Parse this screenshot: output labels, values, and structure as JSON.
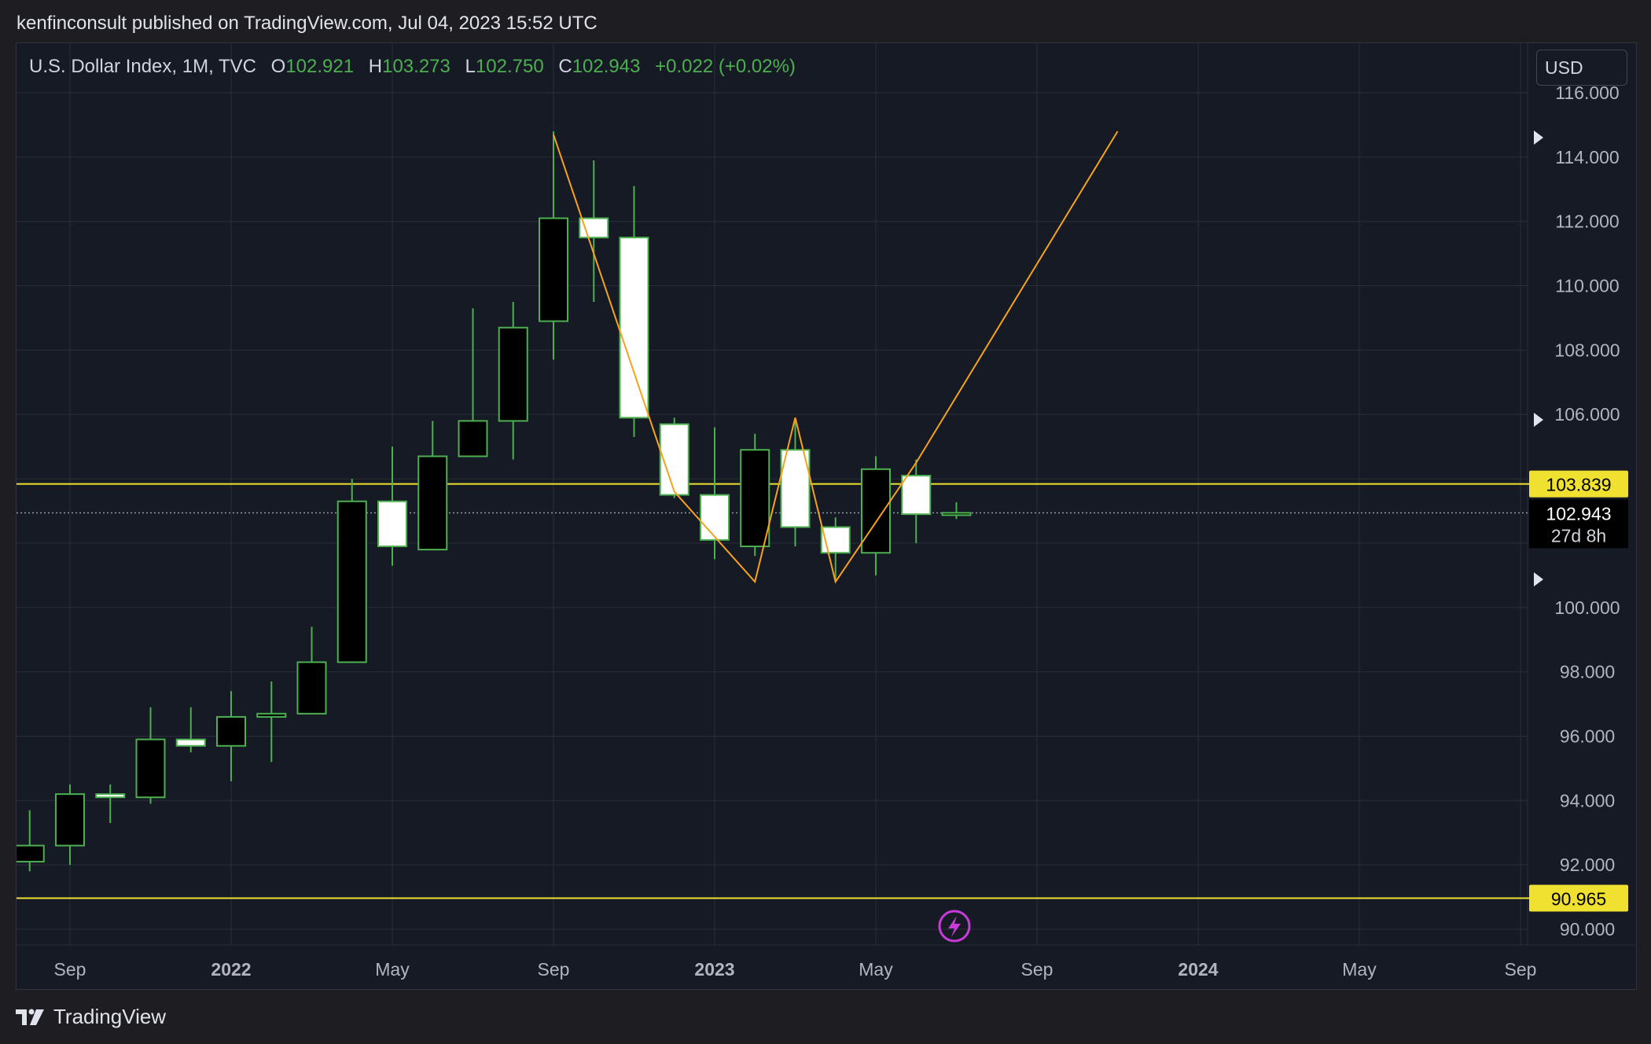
{
  "header": {
    "publisher_line": "kenfinconsult published on TradingView.com, Jul 04, 2023 15:52 UTC"
  },
  "legend": {
    "symbol": "U.S. Dollar Index, 1M, TVC",
    "o_label": "O",
    "o_value": "102.921",
    "h_label": "H",
    "h_value": "103.273",
    "l_label": "L",
    "l_value": "102.750",
    "c_label": "C",
    "c_value": "102.943",
    "change": "+0.022 (+0.02%)"
  },
  "currency_button": "USD",
  "footer": {
    "brand": "TradingView"
  },
  "colors": {
    "background": "#161a25",
    "candle_border": "#4caf50",
    "yellow_line": "#f0e130",
    "trend_line": "#f7a21b",
    "grid": "#2a2e39"
  },
  "chart_data": {
    "type": "candlestick",
    "interval": "1M",
    "y_axis": {
      "range": [
        89.5,
        117
      ],
      "ticks": [
        "116.000",
        "114.000",
        "112.000",
        "110.000",
        "108.000",
        "106.000",
        "100.000",
        "98.000",
        "96.000",
        "94.000",
        "92.000",
        "90.000"
      ],
      "side": "right"
    },
    "x_axis": {
      "labels": [
        {
          "text": "Sep",
          "month": "2021-09",
          "bold": false
        },
        {
          "text": "2022",
          "month": "2022-01",
          "bold": true
        },
        {
          "text": "May",
          "month": "2022-05",
          "bold": false
        },
        {
          "text": "Sep",
          "month": "2022-09",
          "bold": false
        },
        {
          "text": "2023",
          "month": "2023-01",
          "bold": true
        },
        {
          "text": "May",
          "month": "2023-05",
          "bold": false
        },
        {
          "text": "Sep",
          "month": "2023-09",
          "bold": false
        },
        {
          "text": "2024",
          "month": "2024-01",
          "bold": true
        },
        {
          "text": "May",
          "month": "2024-05",
          "bold": false
        },
        {
          "text": "Sep",
          "month": "2024-09",
          "bold": false
        }
      ]
    },
    "candles": [
      {
        "month": "2021-08",
        "o": 92.1,
        "h": 93.7,
        "l": 91.8,
        "c": 92.6
      },
      {
        "month": "2021-09",
        "o": 92.6,
        "h": 94.5,
        "l": 92.0,
        "c": 94.2
      },
      {
        "month": "2021-10",
        "o": 94.2,
        "h": 94.5,
        "l": 93.3,
        "c": 94.1
      },
      {
        "month": "2021-11",
        "o": 94.1,
        "h": 96.9,
        "l": 93.9,
        "c": 95.9
      },
      {
        "month": "2021-12",
        "o": 95.9,
        "h": 96.9,
        "l": 95.5,
        "c": 95.7
      },
      {
        "month": "2022-01",
        "o": 95.7,
        "h": 97.4,
        "l": 94.6,
        "c": 96.6
      },
      {
        "month": "2022-02",
        "o": 96.6,
        "h": 97.7,
        "l": 95.2,
        "c": 96.7
      },
      {
        "month": "2022-03",
        "o": 96.7,
        "h": 99.4,
        "l": 96.7,
        "c": 98.3
      },
      {
        "month": "2022-04",
        "o": 98.3,
        "h": 104.0,
        "l": 98.3,
        "c": 103.3
      },
      {
        "month": "2022-05",
        "o": 103.3,
        "h": 105.0,
        "l": 101.3,
        "c": 101.9
      },
      {
        "month": "2022-06",
        "o": 101.8,
        "h": 105.8,
        "l": 101.8,
        "c": 104.7
      },
      {
        "month": "2022-07",
        "o": 104.7,
        "h": 109.3,
        "l": 104.7,
        "c": 105.8
      },
      {
        "month": "2022-08",
        "o": 105.8,
        "h": 109.5,
        "l": 104.6,
        "c": 108.7
      },
      {
        "month": "2022-09",
        "o": 108.9,
        "h": 114.8,
        "l": 107.7,
        "c": 112.1
      },
      {
        "month": "2022-10",
        "o": 112.1,
        "h": 113.9,
        "l": 109.5,
        "c": 111.5
      },
      {
        "month": "2022-11",
        "o": 111.5,
        "h": 113.1,
        "l": 105.3,
        "c": 105.9
      },
      {
        "month": "2022-12",
        "o": 105.7,
        "h": 105.9,
        "l": 103.4,
        "c": 103.5
      },
      {
        "month": "2023-01",
        "o": 103.5,
        "h": 105.6,
        "l": 101.5,
        "c": 102.1
      },
      {
        "month": "2023-02",
        "o": 101.9,
        "h": 105.4,
        "l": 101.6,
        "c": 104.9
      },
      {
        "month": "2023-03",
        "o": 104.9,
        "h": 105.9,
        "l": 101.9,
        "c": 102.5
      },
      {
        "month": "2023-04",
        "o": 102.5,
        "h": 102.8,
        "l": 100.8,
        "c": 101.7
      },
      {
        "month": "2023-05",
        "o": 101.7,
        "h": 104.7,
        "l": 101.0,
        "c": 104.3
      },
      {
        "month": "2023-06",
        "o": 104.1,
        "h": 104.6,
        "l": 102.0,
        "c": 102.9
      },
      {
        "month": "2023-07",
        "o": 102.921,
        "h": 103.273,
        "l": 102.75,
        "c": 102.943
      }
    ],
    "horizontal_lines": [
      {
        "value": 103.839,
        "label": "103.839"
      },
      {
        "value": 90.965,
        "label": "90.965"
      }
    ],
    "trend_line": [
      {
        "month": "2022-09",
        "y": 114.7
      },
      {
        "month": "2022-12",
        "y": 103.6
      },
      {
        "month": "2023-02",
        "y": 100.8
      },
      {
        "month": "2023-03",
        "y": 105.9
      },
      {
        "month": "2023-04",
        "y": 100.8
      },
      {
        "month": "2023-06",
        "y": 104.5
      },
      {
        "month": "2023-11",
        "y": 114.8
      }
    ],
    "price_label": {
      "value": "102.943",
      "countdown": "27d 8h"
    }
  }
}
